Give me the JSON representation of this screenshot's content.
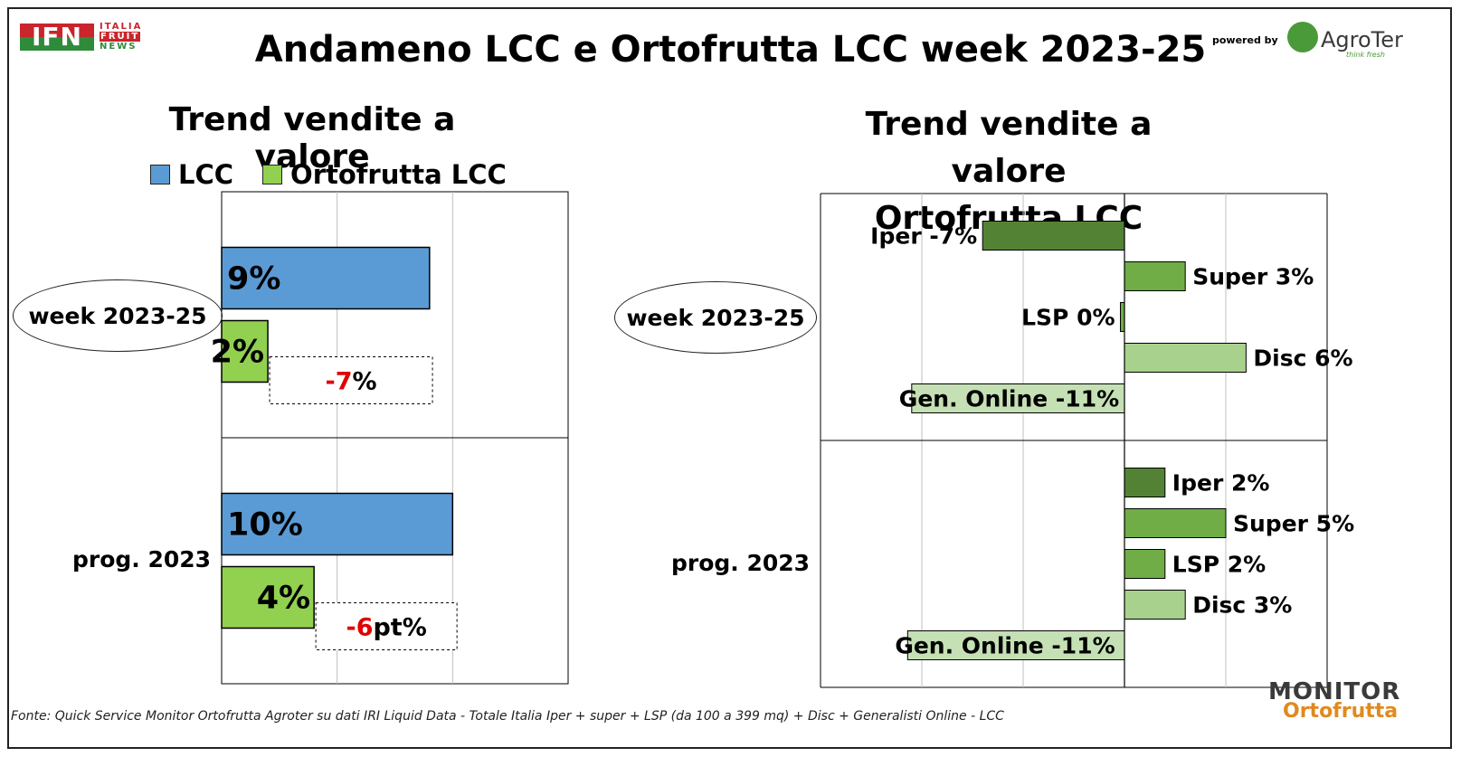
{
  "header": {
    "title": "Andameno LCC e Ortofrutta LCC week 2023-25",
    "ifn_logo": "IFN",
    "ifn_sub": [
      "ITALIA",
      "FRUIT",
      "NEWS"
    ],
    "powered_by": "powered by",
    "agroter": "AgroTer",
    "agroter_tagline": "think fresh"
  },
  "footer": {
    "source": "Fonte: Quick Service Monitor Ortofrutta Agroter su dati IRI Liquid Data - Totale Italia Iper + super + LSP (da 100 a 399 mq) + Disc + Generalisti Online - LCC",
    "monitor_logo_1": "MONITOR",
    "monitor_logo_2": "Ortofrutta"
  },
  "colors": {
    "lcc": "#5b9bd5",
    "ortofrutta": "#92d050",
    "iper": "#548235",
    "super": "#70ad47",
    "lsp": "#70ad47",
    "disc": "#a9d18e",
    "online": "#c5e0b4",
    "delta_red": "#e00000"
  },
  "chart_data": [
    {
      "type": "bar",
      "orientation": "horizontal",
      "title": "Trend vendite a valore",
      "categories": [
        "week 2023-25",
        "prog. 2023"
      ],
      "series": [
        {
          "name": "LCC",
          "values": [
            9,
            10
          ],
          "labels": [
            "9%",
            "10%"
          ]
        },
        {
          "name": "Ortofrutta LCC",
          "values": [
            2,
            4
          ],
          "labels": [
            "2%",
            "4%"
          ]
        }
      ],
      "annotations": [
        {
          "category": "week 2023-25",
          "num": "-7",
          "unit": "%"
        },
        {
          "category": "prog. 2023",
          "num": "-6",
          "unit": "pt%"
        }
      ],
      "xlim": [
        0,
        15
      ],
      "grid": true,
      "legend": "top"
    },
    {
      "type": "bar",
      "orientation": "horizontal",
      "title": [
        "Trend vendite a valore",
        "Ortofrutta LCC"
      ],
      "categories": [
        "week 2023-25",
        "prog. 2023"
      ],
      "channels": [
        {
          "key": "iper",
          "values": [
            -7,
            2
          ],
          "labels": [
            "Iper -7%",
            "Iper 2%"
          ]
        },
        {
          "key": "super",
          "values": [
            3,
            5
          ],
          "labels": [
            "Super 3%",
            "Super 5%"
          ]
        },
        {
          "key": "lsp",
          "values": [
            -0.2,
            2
          ],
          "labels": [
            "LSP 0%",
            "LSP 2%"
          ]
        },
        {
          "key": "disc",
          "values": [
            6,
            3
          ],
          "labels": [
            "Disc 6%",
            "Disc 3%"
          ]
        },
        {
          "key": "online",
          "values": [
            -10.5,
            -10.7
          ],
          "labels": [
            "Gen. Online -11%",
            "Gen. Online -11%"
          ]
        }
      ],
      "xlim": [
        -15,
        10
      ],
      "grid": true
    }
  ]
}
